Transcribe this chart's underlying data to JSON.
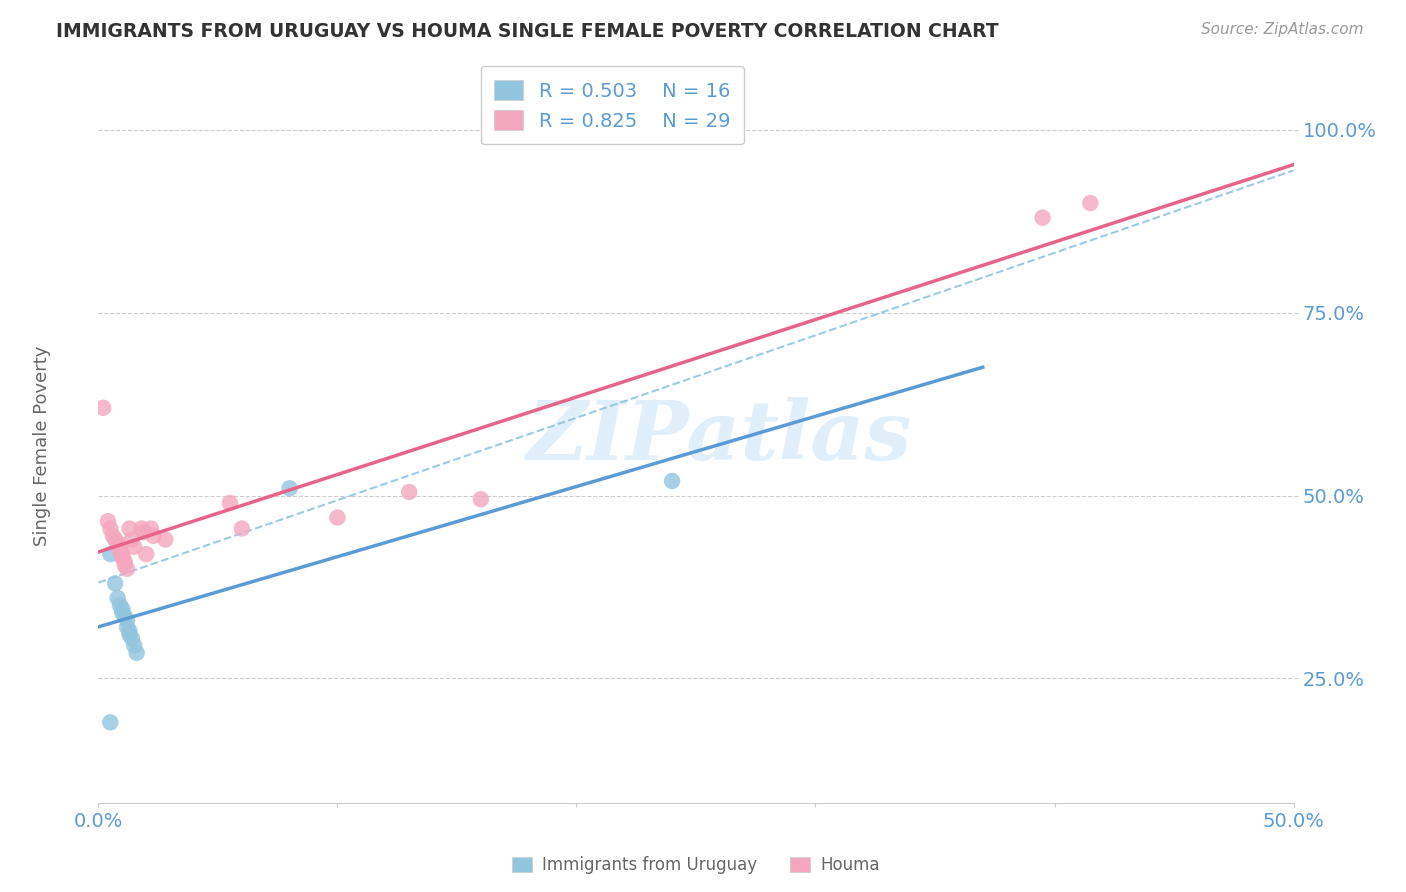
{
  "title": "IMMIGRANTS FROM URUGUAY VS HOUMA SINGLE FEMALE POVERTY CORRELATION CHART",
  "source": "Source: ZipAtlas.com",
  "ylabel": "Single Female Poverty",
  "xlim": [
    0.0,
    0.5
  ],
  "ylim": [
    0.08,
    1.08
  ],
  "yticks": [
    0.25,
    0.5,
    0.75,
    1.0
  ],
  "ytick_labels": [
    "25.0%",
    "50.0%",
    "75.0%",
    "100.0%"
  ],
  "xticks": [
    0.0,
    0.1,
    0.2,
    0.3,
    0.4,
    0.5
  ],
  "xtick_labels": [
    "0.0%",
    "",
    "",
    "",
    "",
    "50.0%"
  ],
  "legend_label1": "Immigrants from Uruguay",
  "legend_label2": "Houma",
  "blue_color": "#92c5de",
  "pink_color": "#f4a6bf",
  "blue_line_color": "#5b9bd5",
  "pink_line_color": "#e8638a",
  "dashed_line_color": "#92c5de",
  "blue_scatter": [
    [
      0.005,
      0.42
    ],
    [
      0.007,
      0.38
    ],
    [
      0.008,
      0.36
    ],
    [
      0.009,
      0.35
    ],
    [
      0.01,
      0.345
    ],
    [
      0.01,
      0.34
    ],
    [
      0.011,
      0.335
    ],
    [
      0.012,
      0.33
    ],
    [
      0.012,
      0.32
    ],
    [
      0.013,
      0.315
    ],
    [
      0.013,
      0.31
    ],
    [
      0.014,
      0.305
    ],
    [
      0.015,
      0.295
    ],
    [
      0.016,
      0.285
    ],
    [
      0.08,
      0.51
    ],
    [
      0.24,
      0.52
    ],
    [
      0.005,
      0.19
    ]
  ],
  "pink_scatter": [
    [
      0.002,
      0.62
    ],
    [
      0.004,
      0.465
    ],
    [
      0.005,
      0.455
    ],
    [
      0.006,
      0.445
    ],
    [
      0.007,
      0.44
    ],
    [
      0.008,
      0.435
    ],
    [
      0.009,
      0.43
    ],
    [
      0.009,
      0.425
    ],
    [
      0.01,
      0.42
    ],
    [
      0.01,
      0.415
    ],
    [
      0.011,
      0.41
    ],
    [
      0.011,
      0.405
    ],
    [
      0.012,
      0.4
    ],
    [
      0.013,
      0.455
    ],
    [
      0.014,
      0.44
    ],
    [
      0.015,
      0.43
    ],
    [
      0.018,
      0.455
    ],
    [
      0.019,
      0.45
    ],
    [
      0.02,
      0.42
    ],
    [
      0.022,
      0.455
    ],
    [
      0.023,
      0.445
    ],
    [
      0.028,
      0.44
    ],
    [
      0.055,
      0.49
    ],
    [
      0.06,
      0.455
    ],
    [
      0.1,
      0.47
    ],
    [
      0.16,
      0.495
    ],
    [
      0.13,
      0.505
    ],
    [
      0.395,
      0.88
    ],
    [
      0.415,
      0.9
    ]
  ],
  "watermark": "ZIPatlas",
  "background_color": "#ffffff",
  "grid_color": "#cccccc",
  "title_color": "#333333",
  "axis_label_color": "#666666",
  "tick_label_color": "#5b9bd5"
}
